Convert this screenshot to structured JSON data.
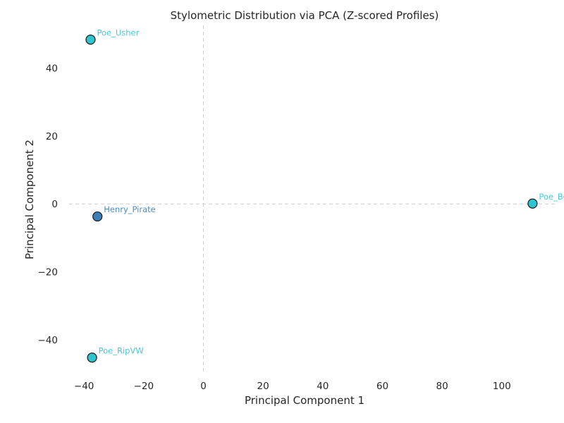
{
  "chart_data": {
    "type": "scatter",
    "title": "Stylometric Distribution via PCA (Z-scored Profiles)",
    "xlabel": "Principal Component 1",
    "ylabel": "Principal Component 2",
    "xlim": [
      -45,
      118
    ],
    "ylim": [
      -49.5,
      52.5
    ],
    "x_ticks": [
      -40,
      -20,
      0,
      20,
      40,
      60,
      80,
      100
    ],
    "y_ticks": [
      -40,
      -20,
      0,
      20,
      40
    ],
    "x_tick_labels": [
      "−40",
      "−20",
      "0",
      "20",
      "40",
      "60",
      "80",
      "100"
    ],
    "y_tick_labels": [
      "−40",
      "−20",
      "0",
      "20",
      "40"
    ],
    "reference_lines": {
      "x": 0,
      "y": 0,
      "style": "dashed",
      "color": "#cccccc"
    },
    "grid": false,
    "points": [
      {
        "label": "Poe_Usher",
        "x": -37.8,
        "y": 48.3,
        "color": "#2ec4d0"
      },
      {
        "label": "Henry_Pirate",
        "x": -35.5,
        "y": -3.7,
        "color": "#3a7fb8"
      },
      {
        "label": "Poe_Bel",
        "x": 110.3,
        "y": 0.1,
        "color": "#2ec4d0"
      },
      {
        "label": "Poe_RipVW",
        "x": -37.3,
        "y": -45.2,
        "color": "#2ec4d0"
      }
    ],
    "label_colors": {
      "Poe": "#48c8d8",
      "Henry": "#4a8cc0"
    },
    "marker_edge_color": "#1a1a1a"
  }
}
